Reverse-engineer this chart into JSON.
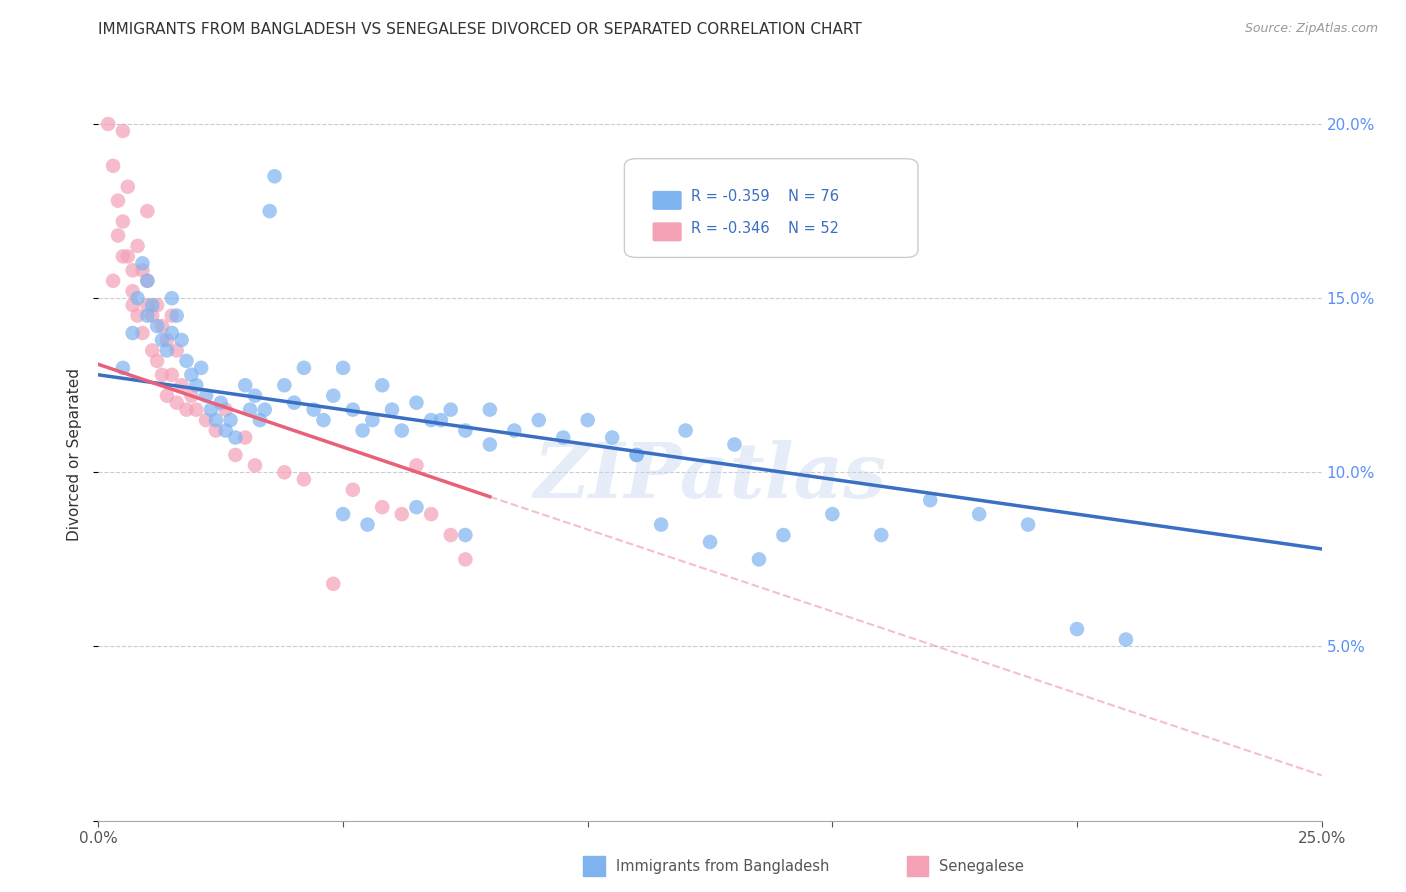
{
  "title": "IMMIGRANTS FROM BANGLADESH VS SENEGALESE DIVORCED OR SEPARATED CORRELATION CHART",
  "source": "Source: ZipAtlas.com",
  "ylabel": "Divorced or Separated",
  "xlim": [
    0.0,
    0.25
  ],
  "ylim": [
    0.0,
    0.21
  ],
  "xticks": [
    0.0,
    0.05,
    0.1,
    0.15,
    0.2,
    0.25
  ],
  "yticks": [
    0.0,
    0.05,
    0.1,
    0.15,
    0.2
  ],
  "legend_r1": "R = -0.359",
  "legend_n1": "N = 76",
  "legend_r2": "R = -0.346",
  "legend_n2": "N = 52",
  "color_blue": "#7EB3F0",
  "color_pink": "#F4A0B5",
  "color_blue_line": "#3A6FC4",
  "color_pink_line": "#E8607A",
  "watermark": "ZIPatlas",
  "blue_line_x0": 0.0,
  "blue_line_y0": 0.128,
  "blue_line_x1": 0.25,
  "blue_line_y1": 0.078,
  "pink_line_solid_x0": 0.0,
  "pink_line_solid_y0": 0.131,
  "pink_line_solid_x1": 0.08,
  "pink_line_solid_y1": 0.093,
  "pink_line_dashed_x0": 0.08,
  "pink_line_dashed_y0": 0.093,
  "pink_line_dashed_x1": 0.25,
  "pink_line_dashed_y1": 0.013,
  "blue_scatter_x": [
    0.005,
    0.007,
    0.008,
    0.009,
    0.01,
    0.01,
    0.011,
    0.012,
    0.013,
    0.014,
    0.015,
    0.015,
    0.016,
    0.017,
    0.018,
    0.019,
    0.02,
    0.021,
    0.022,
    0.023,
    0.024,
    0.025,
    0.026,
    0.027,
    0.028,
    0.03,
    0.031,
    0.032,
    0.033,
    0.034,
    0.035,
    0.036,
    0.038,
    0.04,
    0.042,
    0.044,
    0.046,
    0.048,
    0.05,
    0.052,
    0.054,
    0.056,
    0.058,
    0.06,
    0.062,
    0.065,
    0.068,
    0.072,
    0.075,
    0.08,
    0.085,
    0.09,
    0.095,
    0.1,
    0.105,
    0.11,
    0.12,
    0.13,
    0.14,
    0.15,
    0.16,
    0.17,
    0.18,
    0.19,
    0.2,
    0.21,
    0.11,
    0.115,
    0.125,
    0.135,
    0.05,
    0.055,
    0.065,
    0.07,
    0.075,
    0.08
  ],
  "blue_scatter_y": [
    0.13,
    0.14,
    0.15,
    0.16,
    0.155,
    0.145,
    0.148,
    0.142,
    0.138,
    0.135,
    0.15,
    0.14,
    0.145,
    0.138,
    0.132,
    0.128,
    0.125,
    0.13,
    0.122,
    0.118,
    0.115,
    0.12,
    0.112,
    0.115,
    0.11,
    0.125,
    0.118,
    0.122,
    0.115,
    0.118,
    0.175,
    0.185,
    0.125,
    0.12,
    0.13,
    0.118,
    0.115,
    0.122,
    0.13,
    0.118,
    0.112,
    0.115,
    0.125,
    0.118,
    0.112,
    0.12,
    0.115,
    0.118,
    0.112,
    0.108,
    0.112,
    0.115,
    0.11,
    0.115,
    0.11,
    0.105,
    0.112,
    0.108,
    0.082,
    0.088,
    0.082,
    0.092,
    0.088,
    0.085,
    0.055,
    0.052,
    0.105,
    0.085,
    0.08,
    0.075,
    0.088,
    0.085,
    0.09,
    0.115,
    0.082,
    0.118
  ],
  "pink_scatter_x": [
    0.002,
    0.003,
    0.004,
    0.004,
    0.005,
    0.005,
    0.006,
    0.006,
    0.007,
    0.007,
    0.008,
    0.008,
    0.009,
    0.009,
    0.01,
    0.01,
    0.011,
    0.011,
    0.012,
    0.012,
    0.013,
    0.013,
    0.014,
    0.014,
    0.015,
    0.015,
    0.016,
    0.016,
    0.017,
    0.018,
    0.019,
    0.02,
    0.022,
    0.024,
    0.026,
    0.028,
    0.03,
    0.032,
    0.038,
    0.042,
    0.048,
    0.052,
    0.058,
    0.062,
    0.065,
    0.068,
    0.072,
    0.075,
    0.003,
    0.005,
    0.007,
    0.01
  ],
  "pink_scatter_y": [
    0.2,
    0.188,
    0.178,
    0.168,
    0.198,
    0.172,
    0.182,
    0.162,
    0.158,
    0.148,
    0.165,
    0.145,
    0.158,
    0.14,
    0.175,
    0.155,
    0.145,
    0.135,
    0.148,
    0.132,
    0.142,
    0.128,
    0.138,
    0.122,
    0.145,
    0.128,
    0.135,
    0.12,
    0.125,
    0.118,
    0.122,
    0.118,
    0.115,
    0.112,
    0.118,
    0.105,
    0.11,
    0.102,
    0.1,
    0.098,
    0.068,
    0.095,
    0.09,
    0.088,
    0.102,
    0.088,
    0.082,
    0.075,
    0.155,
    0.162,
    0.152,
    0.148
  ],
  "background_color": "#ffffff",
  "grid_color": "#cccccc"
}
